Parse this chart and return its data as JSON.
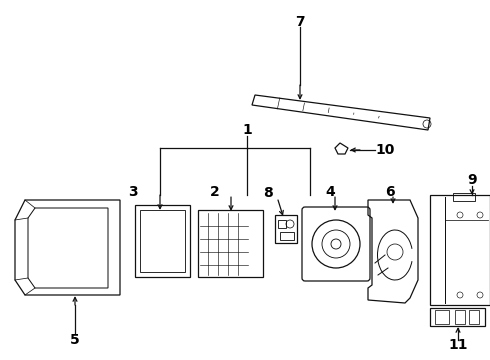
{
  "bg_color": "#ffffff",
  "line_color": "#111111",
  "text_color": "#000000",
  "fig_width": 4.9,
  "fig_height": 3.6,
  "dpi": 100,
  "label_fontsize": 10,
  "label_fontweight": "bold",
  "lw": 0.9
}
